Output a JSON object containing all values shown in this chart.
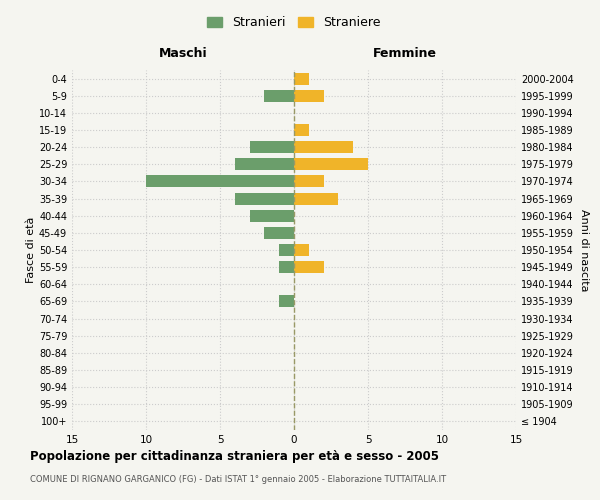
{
  "age_groups": [
    "100+",
    "95-99",
    "90-94",
    "85-89",
    "80-84",
    "75-79",
    "70-74",
    "65-69",
    "60-64",
    "55-59",
    "50-54",
    "45-49",
    "40-44",
    "35-39",
    "30-34",
    "25-29",
    "20-24",
    "15-19",
    "10-14",
    "5-9",
    "0-4"
  ],
  "birth_years": [
    "≤ 1904",
    "1905-1909",
    "1910-1914",
    "1915-1919",
    "1920-1924",
    "1925-1929",
    "1930-1934",
    "1935-1939",
    "1940-1944",
    "1945-1949",
    "1950-1954",
    "1955-1959",
    "1960-1964",
    "1965-1969",
    "1970-1974",
    "1975-1979",
    "1980-1984",
    "1985-1989",
    "1990-1994",
    "1995-1999",
    "2000-2004"
  ],
  "males": [
    0,
    0,
    0,
    0,
    0,
    0,
    0,
    1,
    0,
    1,
    1,
    2,
    3,
    4,
    10,
    4,
    3,
    0,
    0,
    2,
    0
  ],
  "females": [
    0,
    0,
    0,
    0,
    0,
    0,
    0,
    0,
    0,
    2,
    1,
    0,
    0,
    3,
    2,
    5,
    4,
    1,
    0,
    2,
    1
  ],
  "male_color": "#6b9e6b",
  "female_color": "#f0b429",
  "background_color": "#f5f5f0",
  "grid_color": "#cccccc",
  "center_line_color": "#999966",
  "title": "Popolazione per cittadinanza straniera per età e sesso - 2005",
  "subtitle": "COMUNE DI RIGNANO GARGANICO (FG) - Dati ISTAT 1° gennaio 2005 - Elaborazione TUTTAITALIA.IT",
  "xlabel_left": "Maschi",
  "xlabel_right": "Femmine",
  "ylabel_left": "Fasce di età",
  "ylabel_right": "Anni di nascita",
  "xlim": 15,
  "legend_stranieri": "Stranieri",
  "legend_straniere": "Straniere"
}
